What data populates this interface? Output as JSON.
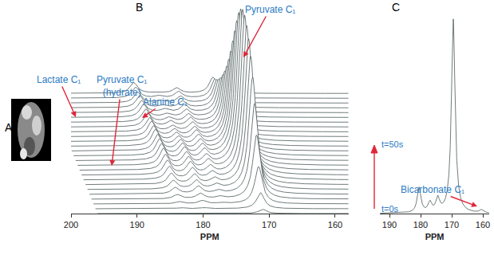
{
  "chart_data": [
    {
      "type": "image",
      "title": "A"
    },
    {
      "type": "waterfall",
      "title": "B",
      "x_label": "PPM",
      "xlim": [
        200,
        158
      ],
      "xticks": [
        200,
        190,
        180,
        170,
        160
      ],
      "ylim": [
        0,
        2
      ],
      "tick_labels": "x",
      "color": "#4d5b5b",
      "time_labels": [
        "t=0s",
        "t=50s"
      ],
      "peaks": [
        {
          "label": "Pyruvate C₁",
          "ppm": 171,
          "values": [
            0.04,
            0.15,
            0.35,
            0.6,
            0.85,
            1.05,
            1.2,
            1.32,
            1.4,
            1.45,
            1.46,
            1.42,
            1.34,
            1.22,
            1.08,
            0.94,
            0.8,
            0.68,
            0.57,
            0.48,
            0.4,
            0.33,
            0.27,
            0.22,
            0.18,
            0.15
          ]
        },
        {
          "label": "Pyruvate C₁ (hydrate)",
          "ppm": 179.5,
          "values": [
            0.0,
            0.01,
            0.03,
            0.05,
            0.07,
            0.08,
            0.09,
            0.1,
            0.11,
            0.11,
            0.11,
            0.11,
            0.1,
            0.09,
            0.08,
            0.07,
            0.06,
            0.05,
            0.05,
            0.04,
            0.03,
            0.03,
            0.02,
            0.02,
            0.02,
            0.01
          ]
        },
        {
          "label": "Alanine C₁",
          "ppm": 176.5,
          "values": [
            0.0,
            0.0,
            0.01,
            0.02,
            0.03,
            0.04,
            0.05,
            0.06,
            0.07,
            0.08,
            0.08,
            0.09,
            0.09,
            0.09,
            0.09,
            0.09,
            0.08,
            0.08,
            0.08,
            0.07,
            0.07,
            0.07,
            0.06,
            0.06,
            0.06,
            0.05
          ]
        },
        {
          "label": "Lactate C₁",
          "ppm": 183,
          "values": [
            0.0,
            0.01,
            0.02,
            0.04,
            0.06,
            0.08,
            0.1,
            0.12,
            0.13,
            0.14,
            0.15,
            0.15,
            0.15,
            0.15,
            0.15,
            0.14,
            0.14,
            0.13,
            0.13,
            0.12,
            0.12,
            0.11,
            0.11,
            0.1,
            0.1,
            0.1
          ]
        }
      ]
    },
    {
      "type": "line",
      "title": "C",
      "x_label": "PPM",
      "xlim": [
        193,
        158
      ],
      "xticks": [
        190,
        180,
        170,
        160
      ],
      "ylim": [
        0,
        1.1
      ],
      "tick_labels": "x",
      "color": "#4d5b5b",
      "peaks": [
        {
          "ppm": 180.5,
          "height": 0.13
        },
        {
          "ppm": 177,
          "height": 0.05
        },
        {
          "ppm": 174.5,
          "height": 0.07
        },
        {
          "ppm": 169.5,
          "height": 1.0
        },
        {
          "label": "Bicarbonate C₁",
          "ppm": 160.5,
          "height": 0.015
        }
      ]
    }
  ]
}
